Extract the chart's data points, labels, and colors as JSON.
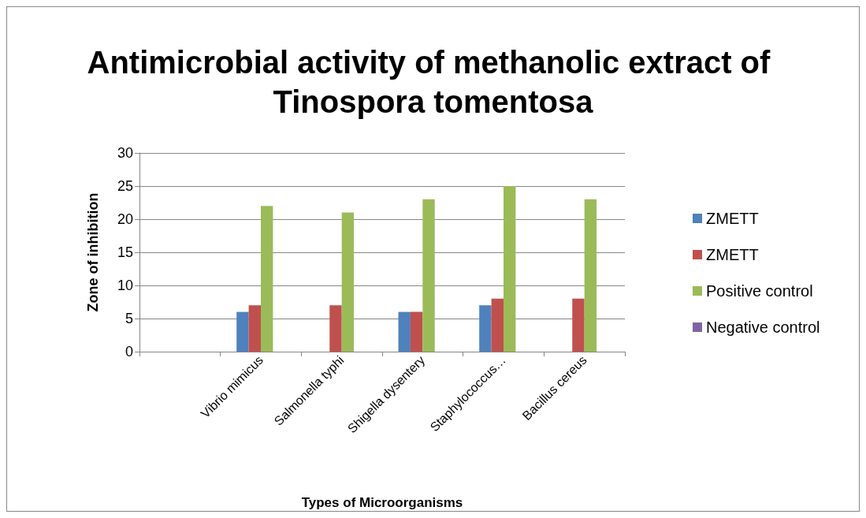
{
  "chart_data": {
    "type": "bar",
    "title": "Antimicrobial activity of methanolic extract of Tinospora tomentosa",
    "xlabel": "Types of Microorganisms",
    "ylabel": "Zone of inhibition",
    "categories": [
      null,
      "Vibrio mimicus",
      "Salmonella typhi",
      "Shigella dysentery",
      "Staphylococcus…",
      "Bacillus cereus"
    ],
    "series": [
      {
        "name": "ZMETT",
        "color": "#4f81bd",
        "values": [
          null,
          6,
          0,
          6,
          7,
          0
        ]
      },
      {
        "name": "ZMETT",
        "color": "#c0504d",
        "values": [
          null,
          7,
          7,
          6,
          8,
          8
        ]
      },
      {
        "name": "Positive control",
        "color": "#9bbb59",
        "values": [
          null,
          22,
          21,
          23,
          25,
          23
        ]
      },
      {
        "name": "Negative control",
        "color": "#8064a2",
        "values": [
          null,
          0,
          0,
          0,
          0,
          0
        ]
      }
    ],
    "ylim": [
      0,
      30
    ],
    "yticks": [
      0,
      5,
      10,
      15,
      20,
      25,
      30
    ],
    "grid": "y",
    "legend": "right"
  }
}
